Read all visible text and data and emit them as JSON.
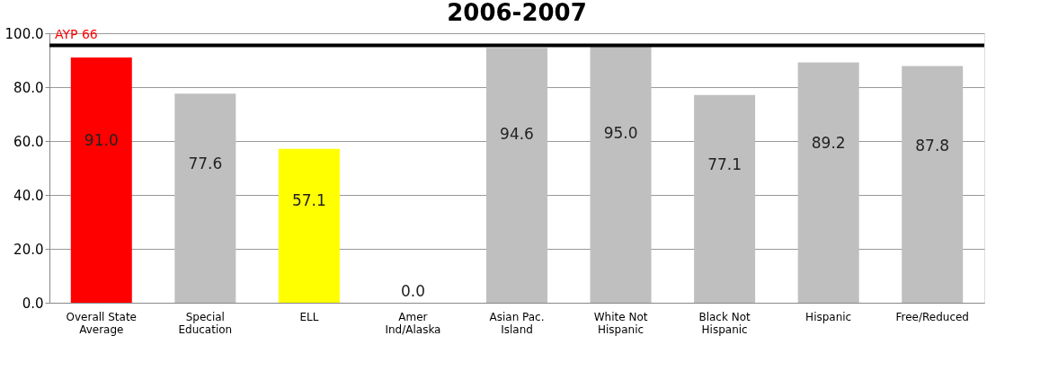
{
  "chart_data": {
    "type": "bar",
    "title": "2006-2007",
    "categories": [
      "Overall State Average",
      "Special Education",
      "ELL",
      "Amer Ind/Alaska",
      "Asian Pac. Island",
      "White Not Hispanic",
      "Black Not Hispanic",
      "Hispanic",
      "Free/Reduced"
    ],
    "values": [
      91.0,
      77.6,
      57.1,
      0.0,
      94.6,
      95.0,
      77.1,
      89.2,
      87.8
    ],
    "colors": [
      "#ff0000",
      "#bfbfbf",
      "#ffff00",
      "#bfbfbf",
      "#bfbfbf",
      "#bfbfbf",
      "#bfbfbf",
      "#bfbfbf",
      "#bfbfbf"
    ],
    "value_labels": [
      "91.0",
      "77.6",
      "57.1",
      "0.0",
      "94.6",
      "95.0",
      "77.1",
      "89.2",
      "87.8"
    ],
    "ylim": [
      0,
      100
    ],
    "yticks": [
      {
        "value": 0,
        "label": "0.0"
      },
      {
        "value": 20,
        "label": "20.0"
      },
      {
        "value": 40,
        "label": "40.0"
      },
      {
        "value": 60,
        "label": "60.0"
      },
      {
        "value": 80,
        "label": "80.0"
      },
      {
        "value": 100,
        "label": "100.0"
      }
    ],
    "ref_lines": [
      {
        "axis": "y",
        "value": 95.5,
        "label": "AYP 66",
        "color": "#000000"
      }
    ],
    "grid": "y"
  }
}
